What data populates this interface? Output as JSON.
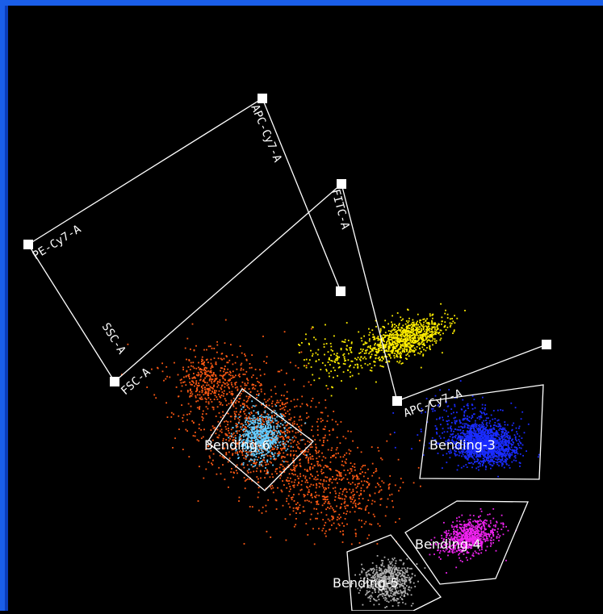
{
  "chart_data": {
    "type": "scatter",
    "title": "",
    "background": "#000000",
    "axes": [
      {
        "name": "PE-Cy7-A"
      },
      {
        "name": "APC-Cy7-A"
      },
      {
        "name": "FITC-A"
      },
      {
        "name": "SSC-A"
      },
      {
        "name": "FSC-A"
      },
      {
        "name": "APC-Cy7-A"
      }
    ],
    "populations": [
      {
        "name": "yellow cluster",
        "color": "#ffee00"
      },
      {
        "name": "orange/red cloud",
        "color": "#ff5a14"
      },
      {
        "name": "cyan cluster",
        "color": "#66ccff"
      },
      {
        "name": "blue cluster",
        "color": "#1a2cff"
      },
      {
        "name": "magenta cluster",
        "color": "#ee22ee"
      },
      {
        "name": "grey cluster",
        "color": "#b0b0b0"
      }
    ],
    "gates": [
      {
        "name": "Bending-6"
      },
      {
        "name": "Bending-3"
      },
      {
        "name": "Bending-4"
      },
      {
        "name": "Bending-5"
      }
    ]
  }
}
